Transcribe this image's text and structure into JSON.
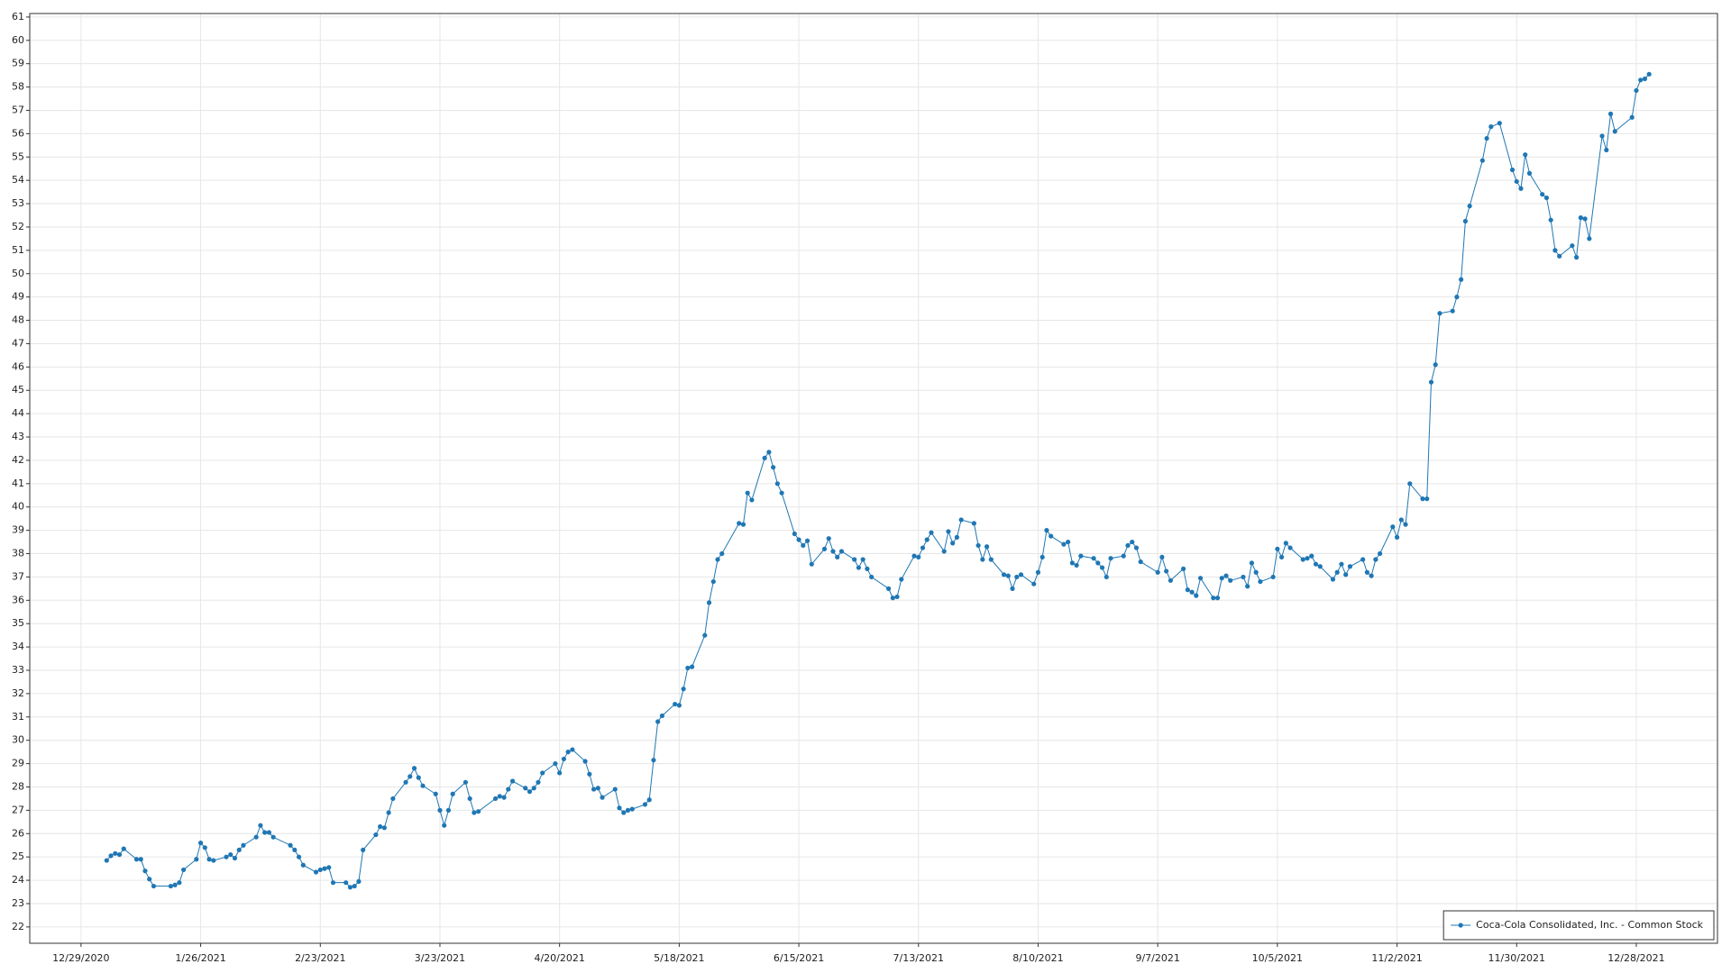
{
  "chart_data": {
    "type": "line",
    "grid": true,
    "legend": "lower right",
    "xlim": [
      "12/17/2020",
      "1/16/2022"
    ],
    "xticks": [
      "12/29/2020",
      "1/26/2021",
      "2/23/2021",
      "3/23/2021",
      "4/20/2021",
      "5/18/2021",
      "6/15/2021",
      "7/13/2021",
      "8/10/2021",
      "9/7/2021",
      "10/5/2021",
      "11/2/2021",
      "11/30/2021",
      "12/28/2021"
    ],
    "ylim": [
      21.3,
      61.15
    ],
    "yticks": [
      22,
      23,
      24,
      25,
      26,
      27,
      28,
      29,
      30,
      31,
      32,
      33,
      34,
      35,
      36,
      37,
      38,
      39,
      40,
      41,
      42,
      43,
      44,
      45,
      46,
      47,
      48,
      49,
      50,
      51,
      52,
      53,
      54,
      55,
      56,
      57,
      58,
      59,
      60,
      61
    ],
    "x": [
      "1/4/2021",
      "1/5/2021",
      "1/6/2021",
      "1/7/2021",
      "1/8/2021",
      "1/11/2021",
      "1/12/2021",
      "1/13/2021",
      "1/14/2021",
      "1/15/2021",
      "1/19/2021",
      "1/20/2021",
      "1/21/2021",
      "1/22/2021",
      "1/25/2021",
      "1/26/2021",
      "1/27/2021",
      "1/28/2021",
      "1/29/2021",
      "2/1/2021",
      "2/2/2021",
      "2/3/2021",
      "2/4/2021",
      "2/5/2021",
      "2/8/2021",
      "2/9/2021",
      "2/10/2021",
      "2/11/2021",
      "2/12/2021",
      "2/16/2021",
      "2/17/2021",
      "2/18/2021",
      "2/19/2021",
      "2/22/2021",
      "2/23/2021",
      "2/24/2021",
      "2/25/2021",
      "2/26/2021",
      "3/1/2021",
      "3/2/2021",
      "3/3/2021",
      "3/4/2021",
      "3/5/2021",
      "3/8/2021",
      "3/9/2021",
      "3/10/2021",
      "3/11/2021",
      "3/12/2021",
      "3/15/2021",
      "3/16/2021",
      "3/17/2021",
      "3/18/2021",
      "3/19/2021",
      "3/22/2021",
      "3/23/2021",
      "3/24/2021",
      "3/25/2021",
      "3/26/2021",
      "3/29/2021",
      "3/30/2021",
      "3/31/2021",
      "4/1/2021",
      "4/5/2021",
      "4/6/2021",
      "4/7/2021",
      "4/8/2021",
      "4/9/2021",
      "4/12/2021",
      "4/13/2021",
      "4/14/2021",
      "4/15/2021",
      "4/16/2021",
      "4/19/2021",
      "4/20/2021",
      "4/21/2021",
      "4/22/2021",
      "4/23/2021",
      "4/26/2021",
      "4/27/2021",
      "4/28/2021",
      "4/29/2021",
      "4/30/2021",
      "5/3/2021",
      "5/4/2021",
      "5/5/2021",
      "5/6/2021",
      "5/7/2021",
      "5/10/2021",
      "5/11/2021",
      "5/12/2021",
      "5/13/2021",
      "5/14/2021",
      "5/17/2021",
      "5/18/2021",
      "5/19/2021",
      "5/20/2021",
      "5/21/2021",
      "5/24/2021",
      "5/25/2021",
      "5/26/2021",
      "5/27/2021",
      "5/28/2021",
      "6/1/2021",
      "6/2/2021",
      "6/3/2021",
      "6/4/2021",
      "6/7/2021",
      "6/8/2021",
      "6/9/2021",
      "6/10/2021",
      "6/11/2021",
      "6/14/2021",
      "6/15/2021",
      "6/16/2021",
      "6/17/2021",
      "6/18/2021",
      "6/21/2021",
      "6/22/2021",
      "6/23/2021",
      "6/24/2021",
      "6/25/2021",
      "6/28/2021",
      "6/29/2021",
      "6/30/2021",
      "7/1/2021",
      "7/2/2021",
      "7/6/2021",
      "7/7/2021",
      "7/8/2021",
      "7/9/2021",
      "7/12/2021",
      "7/13/2021",
      "7/14/2021",
      "7/15/2021",
      "7/16/2021",
      "7/19/2021",
      "7/20/2021",
      "7/21/2021",
      "7/22/2021",
      "7/23/2021",
      "7/26/2021",
      "7/27/2021",
      "7/28/2021",
      "7/29/2021",
      "7/30/2021",
      "8/2/2021",
      "8/3/2021",
      "8/4/2021",
      "8/5/2021",
      "8/6/2021",
      "8/9/2021",
      "8/10/2021",
      "8/11/2021",
      "8/12/2021",
      "8/13/2021",
      "8/16/2021",
      "8/17/2021",
      "8/18/2021",
      "8/19/2021",
      "8/20/2021",
      "8/23/2021",
      "8/24/2021",
      "8/25/2021",
      "8/26/2021",
      "8/27/2021",
      "8/30/2021",
      "8/31/2021",
      "9/1/2021",
      "9/2/2021",
      "9/3/2021",
      "9/7/2021",
      "9/8/2021",
      "9/9/2021",
      "9/10/2021",
      "9/13/2021",
      "9/14/2021",
      "9/15/2021",
      "9/16/2021",
      "9/17/2021",
      "9/20/2021",
      "9/21/2021",
      "9/22/2021",
      "9/23/2021",
      "9/24/2021",
      "9/27/2021",
      "9/28/2021",
      "9/29/2021",
      "9/30/2021",
      "10/1/2021",
      "10/4/2021",
      "10/5/2021",
      "10/6/2021",
      "10/7/2021",
      "10/8/2021",
      "10/11/2021",
      "10/12/2021",
      "10/13/2021",
      "10/14/2021",
      "10/15/2021",
      "10/18/2021",
      "10/19/2021",
      "10/20/2021",
      "10/21/2021",
      "10/22/2021",
      "10/25/2021",
      "10/26/2021",
      "10/27/2021",
      "10/28/2021",
      "10/29/2021",
      "11/1/2021",
      "11/2/2021",
      "11/3/2021",
      "11/4/2021",
      "11/5/2021",
      "11/8/2021",
      "11/9/2021",
      "11/10/2021",
      "11/11/2021",
      "11/12/2021",
      "11/15/2021",
      "11/16/2021",
      "11/17/2021",
      "11/18/2021",
      "11/19/2021",
      "11/22/2021",
      "11/23/2021",
      "11/24/2021",
      "11/26/2021",
      "11/29/2021",
      "11/30/2021",
      "12/1/2021",
      "12/2/2021",
      "12/3/2021",
      "12/6/2021",
      "12/7/2021",
      "12/8/2021",
      "12/9/2021",
      "12/10/2021",
      "12/13/2021",
      "12/14/2021",
      "12/15/2021",
      "12/16/2021",
      "12/17/2021",
      "12/20/2021",
      "12/21/2021",
      "12/22/2021",
      "12/23/2021",
      "12/27/2021",
      "12/28/2021",
      "12/29/2021",
      "12/30/2021",
      "12/31/2021"
    ],
    "series": [
      {
        "name": "Coca-Cola Consolidated, Inc. - Common Stock",
        "color": "#1f77b4",
        "values": [
          24.85,
          25.05,
          25.15,
          25.1,
          25.35,
          24.9,
          24.9,
          24.4,
          24.05,
          23.75,
          23.75,
          23.8,
          23.9,
          24.45,
          24.9,
          25.6,
          25.4,
          24.9,
          24.85,
          25.0,
          25.1,
          24.95,
          25.3,
          25.5,
          25.85,
          26.35,
          26.05,
          26.05,
          25.85,
          25.5,
          25.3,
          25.0,
          24.65,
          24.35,
          24.45,
          24.5,
          24.55,
          23.9,
          23.9,
          23.7,
          23.75,
          23.95,
          25.3,
          25.95,
          26.3,
          26.25,
          26.9,
          27.5,
          28.2,
          28.45,
          28.8,
          28.4,
          28.05,
          27.7,
          27.0,
          26.35,
          27.0,
          27.7,
          28.2,
          27.5,
          26.9,
          26.95,
          27.5,
          27.6,
          27.55,
          27.9,
          28.25,
          27.95,
          27.8,
          27.95,
          28.2,
          28.6,
          29.0,
          28.6,
          29.2,
          29.5,
          29.6,
          29.1,
          28.55,
          27.9,
          27.95,
          27.55,
          27.9,
          27.1,
          26.9,
          27.0,
          27.05,
          27.25,
          27.45,
          29.15,
          30.8,
          31.05,
          31.55,
          31.5,
          32.2,
          33.1,
          33.15,
          34.5,
          35.9,
          36.8,
          37.75,
          38.0,
          39.3,
          39.25,
          40.6,
          40.3,
          42.1,
          42.35,
          41.7,
          41.0,
          40.6,
          38.85,
          38.6,
          38.35,
          38.55,
          37.55,
          38.2,
          38.65,
          38.1,
          37.85,
          38.1,
          37.75,
          37.4,
          37.75,
          37.35,
          37.0,
          36.5,
          36.1,
          36.15,
          36.9,
          37.9,
          37.85,
          38.25,
          38.6,
          38.9,
          38.1,
          38.95,
          38.45,
          38.7,
          39.45,
          39.3,
          38.35,
          37.75,
          38.3,
          37.75,
          37.1,
          37.05,
          36.5,
          37.0,
          37.1,
          36.7,
          37.2,
          37.85,
          39.0,
          38.75,
          38.4,
          38.5,
          37.6,
          37.5,
          37.9,
          37.8,
          37.6,
          37.4,
          37.0,
          37.8,
          37.9,
          38.35,
          38.5,
          38.25,
          37.65,
          37.2,
          37.85,
          37.25,
          36.85,
          37.35,
          36.45,
          36.35,
          36.2,
          36.95,
          36.1,
          36.1,
          36.95,
          37.05,
          36.85,
          37.0,
          36.6,
          37.6,
          37.2,
          36.8,
          37.0,
          38.2,
          37.85,
          38.45,
          38.25,
          37.75,
          37.8,
          37.9,
          37.55,
          37.45,
          36.9,
          37.2,
          37.55,
          37.1,
          37.45,
          37.75,
          37.2,
          37.05,
          37.75,
          38.0,
          39.15,
          38.7,
          39.45,
          39.25,
          41.0,
          40.35,
          40.35,
          45.35,
          46.1,
          48.3,
          48.4,
          49.0,
          49.75,
          52.25,
          52.9,
          54.85,
          55.8,
          56.3,
          56.45,
          54.45,
          53.95,
          53.65,
          55.1,
          54.3,
          53.4,
          53.25,
          52.3,
          51.0,
          50.75,
          51.2,
          50.7,
          52.4,
          52.35,
          51.5,
          55.9,
          55.3,
          56.85,
          56.1,
          56.7,
          57.85,
          58.3,
          58.35,
          58.55
        ]
      }
    ]
  }
}
